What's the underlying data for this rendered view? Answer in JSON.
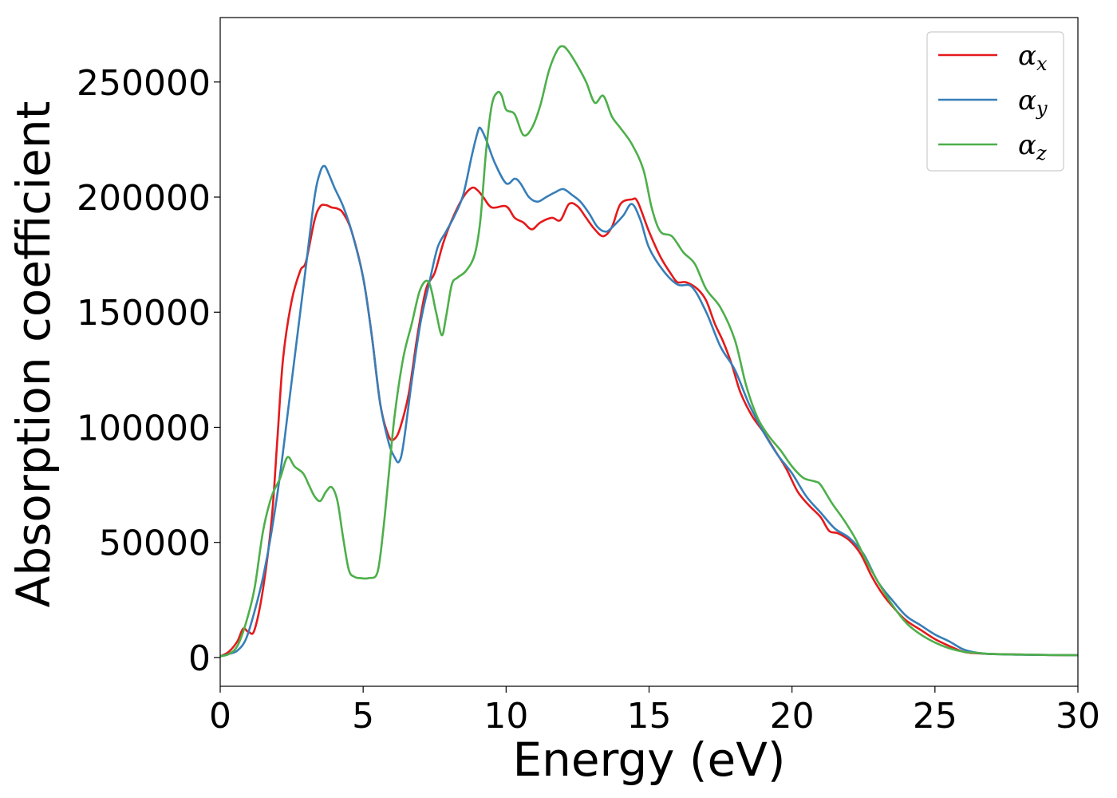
{
  "chart_data": {
    "type": "line",
    "xlabel": "Energy (eV)",
    "ylabel": "Absorption coefficient",
    "xlim": [
      0,
      30
    ],
    "ylim": [
      -12500,
      278000
    ],
    "xticks": [
      0,
      5,
      10,
      15,
      20,
      25,
      30
    ],
    "yticks": [
      0,
      50000,
      100000,
      150000,
      200000,
      250000
    ],
    "grid": false,
    "legend_position": "top-right",
    "series": [
      {
        "name": "α_x",
        "symbol": "α",
        "subscript": "x",
        "color": "#e41a1c",
        "x": [
          0,
          0.3,
          0.6,
          0.8,
          1.0,
          1.2,
          1.5,
          1.8,
          2.0,
          2.2,
          2.5,
          2.8,
          3.0,
          3.3,
          3.5,
          3.7,
          3.9,
          4.1,
          4.3,
          4.6,
          5.0,
          5.3,
          5.6,
          5.9,
          6.1,
          6.3,
          6.6,
          6.9,
          7.2,
          7.5,
          7.8,
          8.1,
          8.5,
          8.8,
          9.0,
          9.2,
          9.5,
          10.0,
          10.3,
          10.6,
          10.9,
          11.2,
          11.6,
          11.9,
          12.2,
          12.5,
          12.8,
          13.1,
          13.4,
          13.7,
          14.0,
          14.4,
          14.6,
          15.0,
          15.4,
          15.8,
          16.0,
          16.3,
          16.7,
          17.0,
          17.3,
          17.6,
          17.9,
          18.2,
          18.6,
          19.0,
          19.4,
          19.8,
          20.2,
          20.6,
          21.0,
          21.3,
          21.6,
          22.0,
          22.4,
          22.8,
          23.2,
          23.6,
          24.0,
          24.5,
          25.0,
          25.5,
          26.0,
          26.5,
          27.0,
          28.0,
          29.0,
          30.0
        ],
        "y": [
          500,
          2500,
          7000,
          12500,
          11000,
          12000,
          30000,
          60000,
          95000,
          130000,
          155000,
          168000,
          172000,
          190000,
          196000,
          196500,
          195500,
          195000,
          193000,
          185000,
          165000,
          140000,
          110000,
          96000,
          95000,
          100000,
          115000,
          140000,
          160000,
          167000,
          180000,
          190000,
          200000,
          204000,
          203000,
          200000,
          195500,
          196000,
          191000,
          189000,
          186000,
          189000,
          191000,
          190000,
          197000,
          196000,
          191000,
          186000,
          183000,
          187000,
          197000,
          199000,
          198000,
          185000,
          174000,
          166000,
          163000,
          163000,
          160000,
          155000,
          145000,
          137000,
          127000,
          115000,
          105000,
          98000,
          90000,
          82000,
          72000,
          66000,
          61000,
          55000,
          54000,
          51000,
          45000,
          35000,
          27000,
          21000,
          16000,
          12000,
          8000,
          5000,
          2500,
          1800,
          1500,
          1300,
          1100,
          1000
        ]
      },
      {
        "name": "α_y",
        "symbol": "α",
        "subscript": "y",
        "color": "#377eb8",
        "x": [
          0,
          0.3,
          0.6,
          0.9,
          1.2,
          1.5,
          1.8,
          2.1,
          2.4,
          2.7,
          3.0,
          3.3,
          3.5,
          3.65,
          3.8,
          4.0,
          4.3,
          4.6,
          5.0,
          5.3,
          5.6,
          5.9,
          6.1,
          6.25,
          6.4,
          6.7,
          7.0,
          7.3,
          7.6,
          7.9,
          8.2,
          8.5,
          8.8,
          9.0,
          9.1,
          9.3,
          9.6,
          10.0,
          10.3,
          10.5,
          10.8,
          11.1,
          11.4,
          11.7,
          12.0,
          12.3,
          12.6,
          12.9,
          13.2,
          13.5,
          13.8,
          14.1,
          14.4,
          14.7,
          15.0,
          15.5,
          16.0,
          16.5,
          17.0,
          17.5,
          18.0,
          18.5,
          19.0,
          19.5,
          20.0,
          20.5,
          21.0,
          21.5,
          22.0,
          22.5,
          23.0,
          23.5,
          24.0,
          24.5,
          25.0,
          25.5,
          26.0,
          26.5,
          27.0,
          28.0,
          29.0,
          30.0
        ],
        "y": [
          500,
          1500,
          3000,
          8000,
          20000,
          35000,
          55000,
          80000,
          110000,
          140000,
          170000,
          200000,
          211000,
          213500,
          210000,
          204000,
          196000,
          185000,
          165000,
          140000,
          110000,
          93000,
          87000,
          85000,
          92000,
          120000,
          145000,
          162000,
          178000,
          185000,
          192000,
          201000,
          218000,
          228000,
          230000,
          225000,
          215000,
          206000,
          208000,
          206000,
          200000,
          198000,
          200000,
          202000,
          203500,
          201000,
          198000,
          193000,
          187000,
          185000,
          188000,
          192000,
          197000,
          190000,
          178000,
          168000,
          162000,
          161000,
          150000,
          135000,
          125000,
          110000,
          98000,
          88000,
          80000,
          70000,
          63000,
          56000,
          52000,
          45000,
          33000,
          25000,
          18000,
          14000,
          10000,
          7000,
          3500,
          2000,
          1500,
          1200,
          1100,
          1000
        ]
      },
      {
        "name": "α_z",
        "symbol": "α",
        "subscript": "z",
        "color": "#4daf4a",
        "x": [
          0,
          0.3,
          0.6,
          0.9,
          1.2,
          1.5,
          1.8,
          2.1,
          2.35,
          2.6,
          2.9,
          3.1,
          3.3,
          3.5,
          3.7,
          3.9,
          4.1,
          4.3,
          4.5,
          4.7,
          4.9,
          5.2,
          5.5,
          5.7,
          5.9,
          6.1,
          6.4,
          6.7,
          7.0,
          7.3,
          7.55,
          7.75,
          7.9,
          8.1,
          8.3,
          8.6,
          8.9,
          9.1,
          9.3,
          9.5,
          9.7,
          9.85,
          10.0,
          10.3,
          10.6,
          10.9,
          11.2,
          11.5,
          11.8,
          12.0,
          12.2,
          12.5,
          12.8,
          13.1,
          13.4,
          13.7,
          14.0,
          14.4,
          14.8,
          15.1,
          15.4,
          15.8,
          16.2,
          16.6,
          17.0,
          17.5,
          18.0,
          18.4,
          18.8,
          19.2,
          19.6,
          20.0,
          20.4,
          20.8,
          21.0,
          21.4,
          21.8,
          22.2,
          22.6,
          23.0,
          23.5,
          24.0,
          24.5,
          25.0,
          25.5,
          26.0,
          26.5,
          27.0,
          28.0,
          29.0,
          30.0
        ],
        "y": [
          500,
          1500,
          5000,
          15000,
          30000,
          55000,
          70000,
          78000,
          87000,
          83000,
          80000,
          75000,
          70000,
          68000,
          72000,
          74000,
          68000,
          52000,
          38000,
          35000,
          34500,
          34500,
          37000,
          55000,
          80000,
          105000,
          130000,
          145000,
          160000,
          163000,
          150000,
          140000,
          148000,
          162000,
          165000,
          168000,
          175000,
          190000,
          220000,
          240000,
          245500,
          244000,
          238000,
          236000,
          227000,
          230000,
          240000,
          255000,
          264000,
          265500,
          263000,
          257000,
          250000,
          241000,
          244000,
          235000,
          230000,
          223000,
          212000,
          195000,
          185000,
          183000,
          176000,
          171000,
          160000,
          152000,
          138000,
          118000,
          104000,
          96000,
          90000,
          83000,
          78000,
          76500,
          75000,
          67000,
          60000,
          52000,
          42000,
          33000,
          23000,
          15000,
          10000,
          6500,
          4000,
          2500,
          2000,
          1500,
          1300,
          1100,
          1000
        ]
      }
    ]
  }
}
